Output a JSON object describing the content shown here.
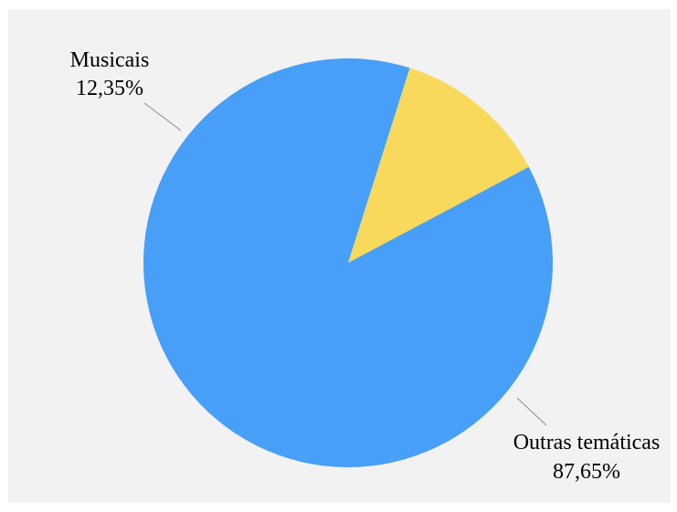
{
  "chart_data": {
    "type": "pie",
    "title": "",
    "start_angle_deg": -28,
    "direction": "counterclockwise",
    "slices": [
      {
        "label": "Musicais",
        "value": 12.35,
        "value_label": "12,35%",
        "color": "#f8d95b"
      },
      {
        "label": "Outras temáticas",
        "value": 87.65,
        "value_label": "87,65%",
        "color": "#479ff7"
      }
    ],
    "legend": "none",
    "background": "#f2f2f2"
  }
}
